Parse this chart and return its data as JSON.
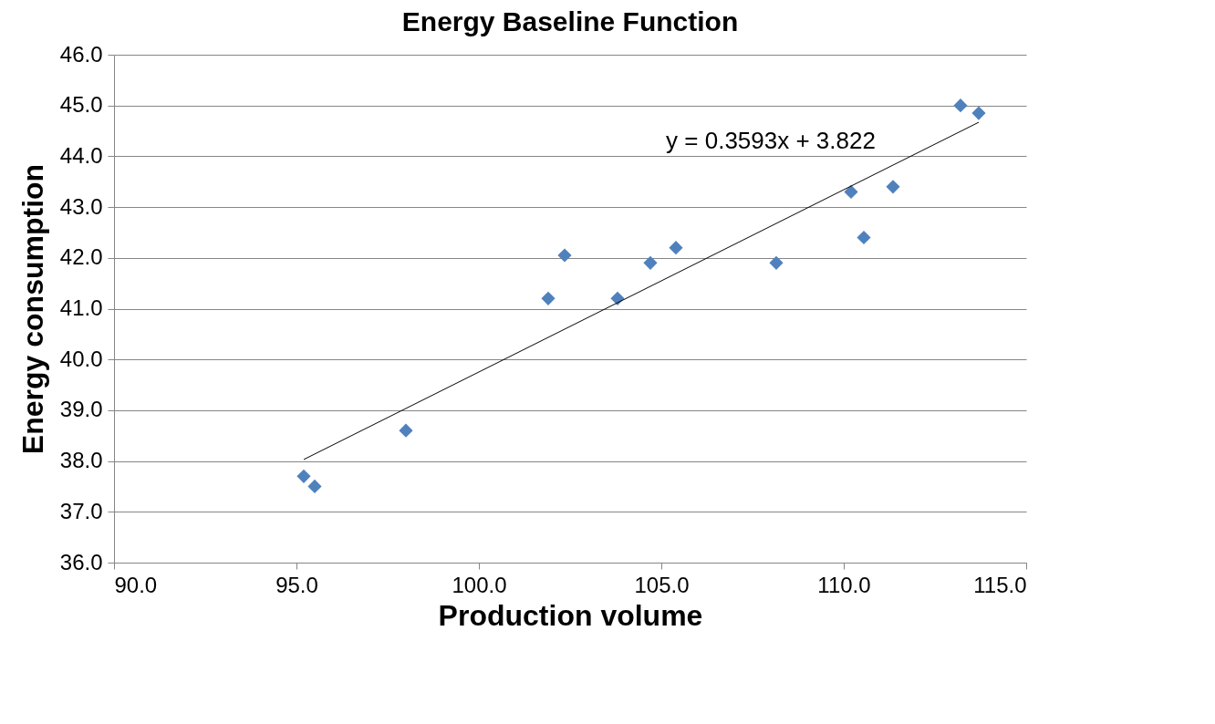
{
  "chart_data": {
    "type": "scatter",
    "title": "Energy Baseline Function",
    "xlabel": "Production volume",
    "ylabel": "Energy consumption",
    "xlim": [
      90,
      115
    ],
    "xticks": [
      {
        "value": 90,
        "label": "90.0"
      },
      {
        "value": 95,
        "label": "95.0"
      },
      {
        "value": 100,
        "label": "100.0"
      },
      {
        "value": 105,
        "label": "105.0"
      },
      {
        "value": 110,
        "label": "110.0"
      },
      {
        "value": 115,
        "label": "115.0"
      }
    ],
    "ylim": [
      36,
      46
    ],
    "yticks": [
      {
        "value": 36,
        "label": "36.0"
      },
      {
        "value": 37,
        "label": "37.0"
      },
      {
        "value": 38,
        "label": "38.0"
      },
      {
        "value": 39,
        "label": "39.0"
      },
      {
        "value": 40,
        "label": "40.0"
      },
      {
        "value": 41,
        "label": "41.0"
      },
      {
        "value": 42,
        "label": "42.0"
      },
      {
        "value": 43,
        "label": "43.0"
      },
      {
        "value": 44,
        "label": "44.0"
      },
      {
        "value": 45,
        "label": "45.0"
      },
      {
        "value": 46,
        "label": "46.0"
      }
    ],
    "grid": "y",
    "series": [
      {
        "marker": "diamond",
        "color": "#4f81bd",
        "x": [
          95.2,
          95.5,
          98.0,
          101.9,
          102.35,
          103.8,
          104.7,
          105.4,
          108.15,
          110.2,
          110.55,
          111.35,
          113.2,
          113.7
        ],
        "values": [
          37.7,
          37.5,
          38.6,
          41.2,
          42.05,
          41.2,
          41.9,
          42.2,
          41.9,
          43.3,
          42.4,
          43.4,
          45.0,
          44.85
        ]
      },
      {
        "type": "line",
        "color": "#000000",
        "x": [
          95.2,
          113.7
        ],
        "values": [
          38.03,
          44.67
        ]
      }
    ],
    "annotations": [
      "y = 0.3593x + 3.822"
    ]
  }
}
